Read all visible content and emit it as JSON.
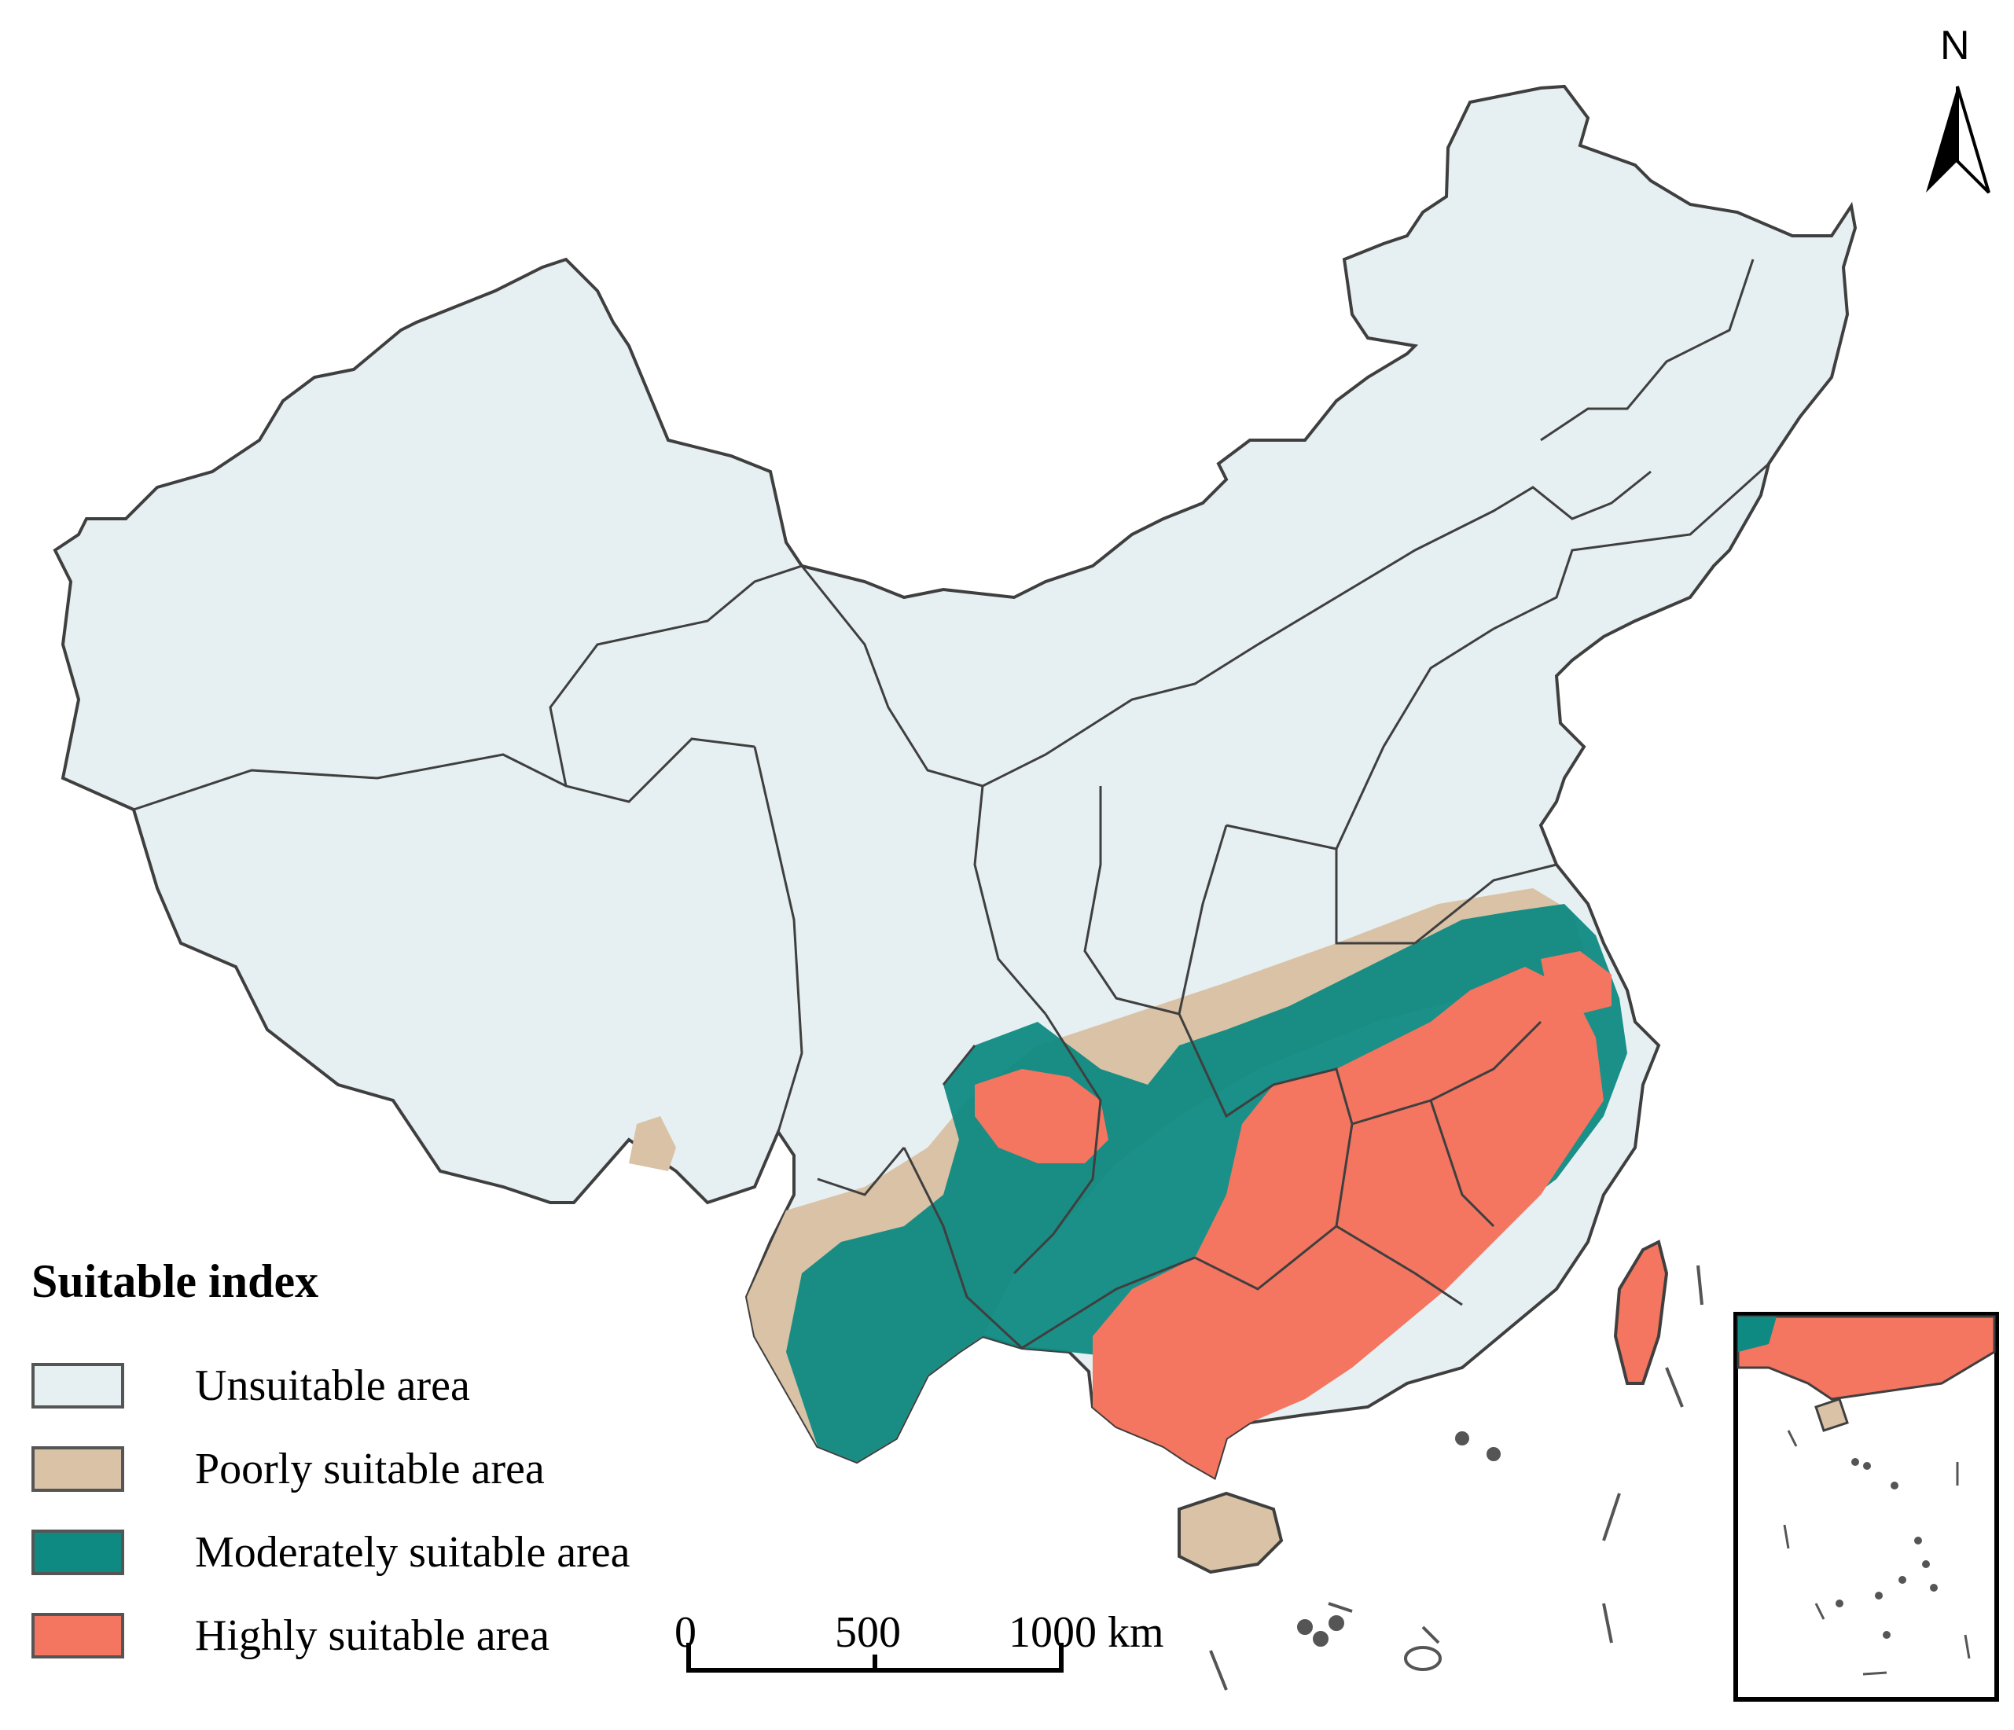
{
  "legend": {
    "title": "Suitable index",
    "items": [
      {
        "label": "Unsuitable area",
        "color": "#e6eff1"
      },
      {
        "label": "Poorly suitable area",
        "color": "#d9c2a5"
      },
      {
        "label": "Moderately suitable area",
        "color": "#0f8a82"
      },
      {
        "label": "Highly suitable area",
        "color": "#f47560"
      }
    ]
  },
  "scale_bar": {
    "tick_labels": [
      "0",
      "500",
      "1000 km"
    ]
  },
  "north_arrow": {
    "label": "N"
  },
  "colors": {
    "boundary": "#3f3f3f",
    "unsuitable": "#e6eff1",
    "poor": "#d9c2a5",
    "moderate": "#0f8a82",
    "high": "#f47560"
  }
}
